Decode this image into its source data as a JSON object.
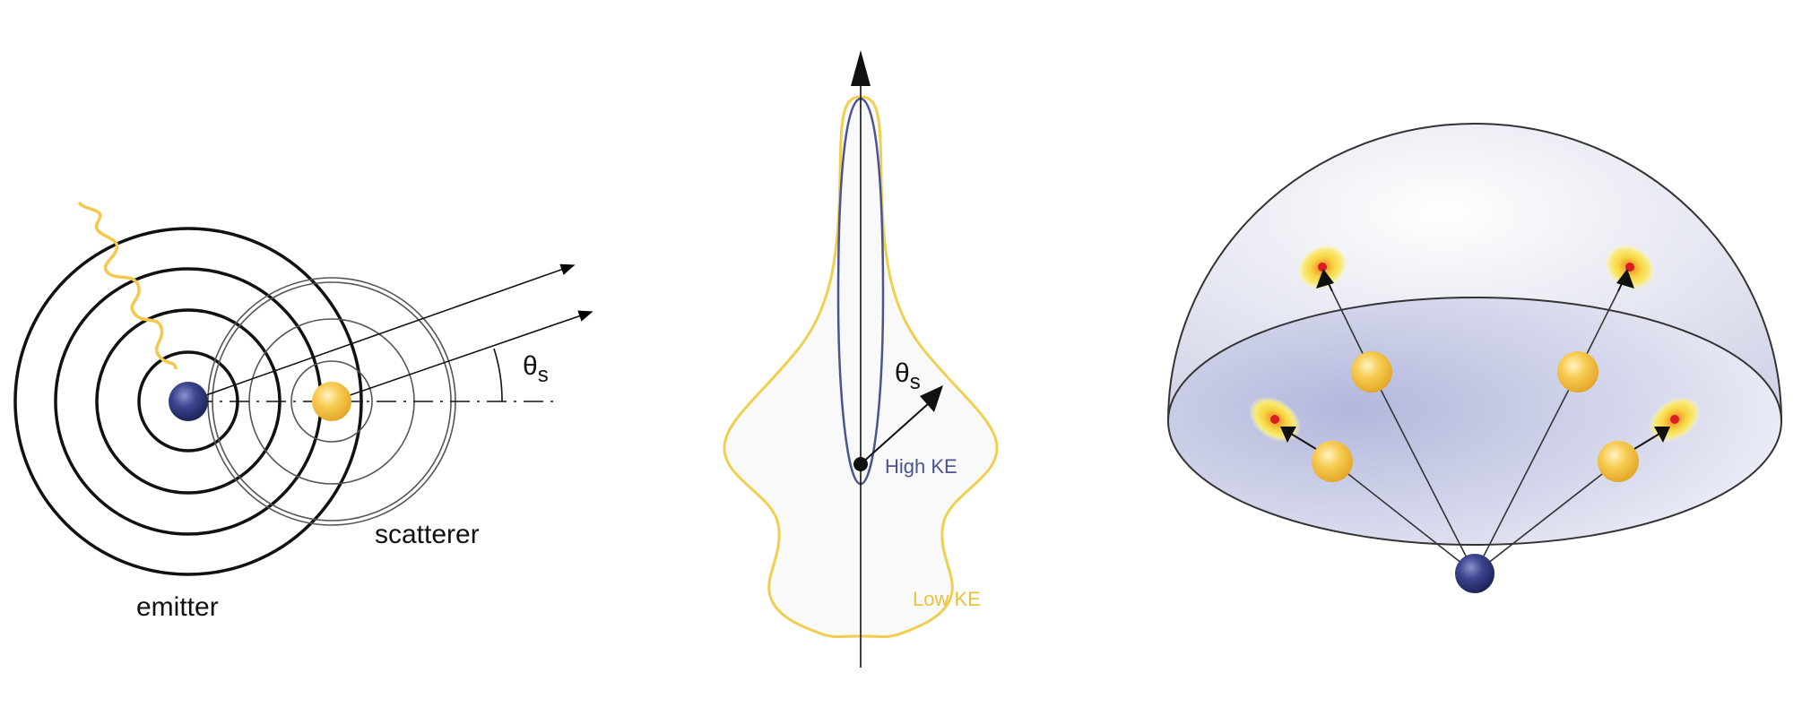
{
  "colors": {
    "emitter": "#2e3577",
    "scatterer": "#f2c24a",
    "wave": "#f2c94c",
    "high_ke": "#4a5491",
    "low_ke": "#f0cf4e",
    "hotspot": "#d81e1e",
    "dome": "#c9cde6"
  },
  "panel1": {
    "theta_symbol": "θ",
    "theta_subscript": "s",
    "scatterer_label": "scatterer",
    "emitter_label": "emitter"
  },
  "panel2": {
    "theta_symbol": "θ",
    "theta_subscript": "s",
    "high_ke_label": "High KE",
    "low_ke_label": "Low KE"
  }
}
